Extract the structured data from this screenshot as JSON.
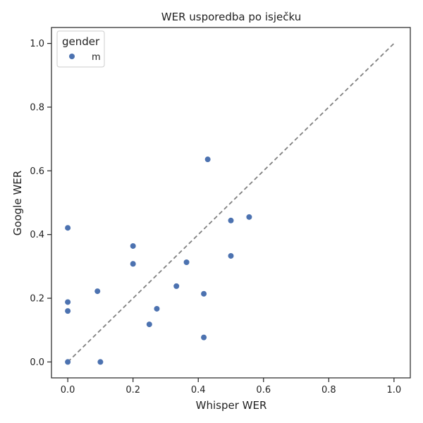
{
  "chart_data": {
    "type": "scatter",
    "title": "WER usporedba po isječku",
    "xlabel": "Whisper WER",
    "ylabel": "Google WER",
    "xlim": [
      -0.05,
      1.05
    ],
    "ylim": [
      -0.05,
      1.05
    ],
    "xticks": [
      "0.0",
      "0.2",
      "0.4",
      "0.6",
      "0.8",
      "1.0"
    ],
    "yticks": [
      "0.0",
      "0.2",
      "0.4",
      "0.6",
      "0.8",
      "1.0"
    ],
    "grid": false,
    "legend": {
      "title": "gender",
      "placement": "top-left",
      "entries": [
        "m"
      ]
    },
    "reference_line": {
      "x": [
        0,
        1
      ],
      "y": [
        0,
        1
      ],
      "style": "dashed",
      "color": "#808080"
    },
    "series": [
      {
        "name": "m",
        "color": "#4c72b0",
        "points": [
          {
            "x": 0.0,
            "y": 0.0
          },
          {
            "x": 0.0,
            "y": 0.16
          },
          {
            "x": 0.0,
            "y": 0.188
          },
          {
            "x": 0.0,
            "y": 0.421
          },
          {
            "x": 0.091,
            "y": 0.222
          },
          {
            "x": 0.1,
            "y": 0.0
          },
          {
            "x": 0.2,
            "y": 0.364
          },
          {
            "x": 0.2,
            "y": 0.308
          },
          {
            "x": 0.25,
            "y": 0.118
          },
          {
            "x": 0.273,
            "y": 0.167
          },
          {
            "x": 0.333,
            "y": 0.238
          },
          {
            "x": 0.364,
            "y": 0.313
          },
          {
            "x": 0.417,
            "y": 0.214
          },
          {
            "x": 0.417,
            "y": 0.077
          },
          {
            "x": 0.429,
            "y": 0.636
          },
          {
            "x": 0.5,
            "y": 0.444
          },
          {
            "x": 0.5,
            "y": 0.333
          },
          {
            "x": 0.556,
            "y": 0.455
          }
        ]
      }
    ]
  }
}
